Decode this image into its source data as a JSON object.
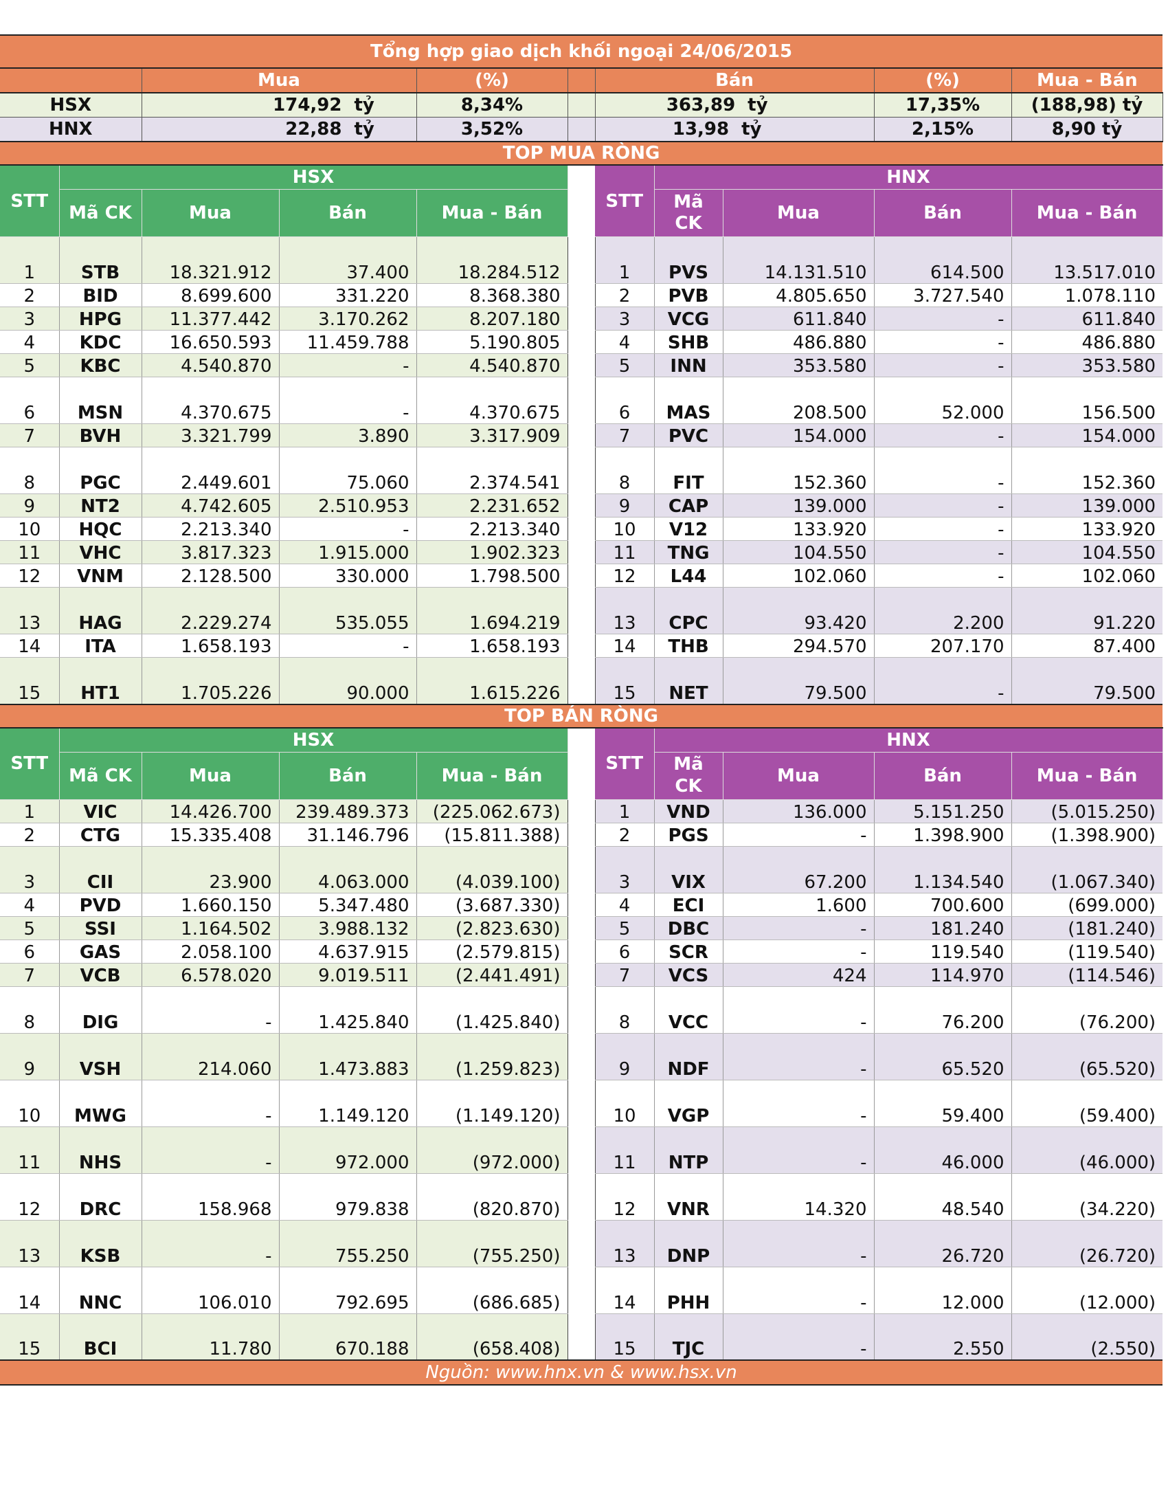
{
  "title": "Tổng hợp giao dịch khối ngoại 24/06/2015",
  "summary": {
    "headers": {
      "mua": "Mua",
      "pct1": "(%)",
      "ban": "Bán",
      "pct2": "(%)",
      "net": "Mua - Bán"
    },
    "unit": "tỷ",
    "rows": [
      {
        "exchange": "HSX",
        "mua": "174,92",
        "mua_pct": "8,34%",
        "ban": "363,89",
        "ban_pct": "17,35%",
        "net": "(188,98) tỷ"
      },
      {
        "exchange": "HNX",
        "mua": "22,88",
        "mua_pct": "3,52%",
        "ban": "13,98",
        "ban_pct": "2,15%",
        "net": "8,90 tỷ"
      }
    ]
  },
  "top_buy": {
    "title": "TOP MUA RÒNG",
    "hsx_label": "HSX",
    "hnx_label": "HNX",
    "headers": {
      "stt": "STT",
      "code_hsx": "Mã CK",
      "code_hnx": "Mã CK",
      "mua": "Mua",
      "ban": "Bán",
      "net": "Mua - Bán"
    },
    "rows": [
      {
        "stt": "1",
        "h_code": "STB",
        "h_mua": "18.321.912",
        "h_ban": "37.400",
        "h_net": "18.284.512",
        "n_code": "PVS",
        "n_mua": "14.131.510",
        "n_ban": "614.500",
        "n_net": "13.517.010"
      },
      {
        "stt": "2",
        "h_code": "BID",
        "h_mua": "8.699.600",
        "h_ban": "331.220",
        "h_net": "8.368.380",
        "n_code": "PVB",
        "n_mua": "4.805.650",
        "n_ban": "3.727.540",
        "n_net": "1.078.110"
      },
      {
        "stt": "3",
        "h_code": "HPG",
        "h_mua": "11.377.442",
        "h_ban": "3.170.262",
        "h_net": "8.207.180",
        "n_code": "VCG",
        "n_mua": "611.840",
        "n_ban": "-",
        "n_net": "611.840"
      },
      {
        "stt": "4",
        "h_code": "KDC",
        "h_mua": "16.650.593",
        "h_ban": "11.459.788",
        "h_net": "5.190.805",
        "n_code": "SHB",
        "n_mua": "486.880",
        "n_ban": "-",
        "n_net": "486.880"
      },
      {
        "stt": "5",
        "h_code": "KBC",
        "h_mua": "4.540.870",
        "h_ban": "-",
        "h_net": "4.540.870",
        "n_code": "INN",
        "n_mua": "353.580",
        "n_ban": "-",
        "n_net": "353.580"
      },
      {
        "stt": "6",
        "h_code": "MSN",
        "h_mua": "4.370.675",
        "h_ban": "-",
        "h_net": "4.370.675",
        "n_code": "MAS",
        "n_mua": "208.500",
        "n_ban": "52.000",
        "n_net": "156.500"
      },
      {
        "stt": "7",
        "h_code": "BVH",
        "h_mua": "3.321.799",
        "h_ban": "3.890",
        "h_net": "3.317.909",
        "n_code": "PVC",
        "n_mua": "154.000",
        "n_ban": "-",
        "n_net": "154.000"
      },
      {
        "stt": "8",
        "h_code": "PGC",
        "h_mua": "2.449.601",
        "h_ban": "75.060",
        "h_net": "2.374.541",
        "n_code": "FIT",
        "n_mua": "152.360",
        "n_ban": "-",
        "n_net": "152.360"
      },
      {
        "stt": "9",
        "h_code": "NT2",
        "h_mua": "4.742.605",
        "h_ban": "2.510.953",
        "h_net": "2.231.652",
        "n_code": "CAP",
        "n_mua": "139.000",
        "n_ban": "-",
        "n_net": "139.000"
      },
      {
        "stt": "10",
        "h_code": "HQC",
        "h_mua": "2.213.340",
        "h_ban": "-",
        "h_net": "2.213.340",
        "n_code": "V12",
        "n_mua": "133.920",
        "n_ban": "-",
        "n_net": "133.920"
      },
      {
        "stt": "11",
        "h_code": "VHC",
        "h_mua": "3.817.323",
        "h_ban": "1.915.000",
        "h_net": "1.902.323",
        "n_code": "TNG",
        "n_mua": "104.550",
        "n_ban": "-",
        "n_net": "104.550"
      },
      {
        "stt": "12",
        "h_code": "VNM",
        "h_mua": "2.128.500",
        "h_ban": "330.000",
        "h_net": "1.798.500",
        "n_code": "L44",
        "n_mua": "102.060",
        "n_ban": "-",
        "n_net": "102.060"
      },
      {
        "stt": "13",
        "h_code": "HAG",
        "h_mua": "2.229.274",
        "h_ban": "535.055",
        "h_net": "1.694.219",
        "n_code": "CPC",
        "n_mua": "93.420",
        "n_ban": "2.200",
        "n_net": "91.220"
      },
      {
        "stt": "14",
        "h_code": "ITA",
        "h_mua": "1.658.193",
        "h_ban": "-",
        "h_net": "1.658.193",
        "n_code": "THB",
        "n_mua": "294.570",
        "n_ban": "207.170",
        "n_net": "87.400"
      },
      {
        "stt": "15",
        "h_code": "HT1",
        "h_mua": "1.705.226",
        "h_ban": "90.000",
        "h_net": "1.615.226",
        "n_code": "NET",
        "n_mua": "79.500",
        "n_ban": "-",
        "n_net": "79.500"
      }
    ]
  },
  "top_sell": {
    "title": "TOP BÁN RÒNG",
    "hsx_label": "HSX",
    "hnx_label": "HNX",
    "headers": {
      "stt": "STT",
      "code_hsx": "Mã CK",
      "code_hnx": "Mã CK",
      "mua": "Mua",
      "ban": "Bán",
      "net": "Mua - Bán"
    },
    "rows": [
      {
        "stt": "1",
        "h_code": "VIC",
        "h_mua": "14.426.700",
        "h_ban": "239.489.373",
        "h_net": "(225.062.673)",
        "n_code": "VND",
        "n_mua": "136.000",
        "n_ban": "5.151.250",
        "n_net": "(5.015.250)"
      },
      {
        "stt": "2",
        "h_code": "CTG",
        "h_mua": "15.335.408",
        "h_ban": "31.146.796",
        "h_net": "(15.811.388)",
        "n_code": "PGS",
        "n_mua": "-",
        "n_ban": "1.398.900",
        "n_net": "(1.398.900)"
      },
      {
        "stt": "3",
        "h_code": "CII",
        "h_mua": "23.900",
        "h_ban": "4.063.000",
        "h_net": "(4.039.100)",
        "n_code": "VIX",
        "n_mua": "67.200",
        "n_ban": "1.134.540",
        "n_net": "(1.067.340)"
      },
      {
        "stt": "4",
        "h_code": "PVD",
        "h_mua": "1.660.150",
        "h_ban": "5.347.480",
        "h_net": "(3.687.330)",
        "n_code": "ECI",
        "n_mua": "1.600",
        "n_ban": "700.600",
        "n_net": "(699.000)"
      },
      {
        "stt": "5",
        "h_code": "SSI",
        "h_mua": "1.164.502",
        "h_ban": "3.988.132",
        "h_net": "(2.823.630)",
        "n_code": "DBC",
        "n_mua": "-",
        "n_ban": "181.240",
        "n_net": "(181.240)"
      },
      {
        "stt": "6",
        "h_code": "GAS",
        "h_mua": "2.058.100",
        "h_ban": "4.637.915",
        "h_net": "(2.579.815)",
        "n_code": "SCR",
        "n_mua": "-",
        "n_ban": "119.540",
        "n_net": "(119.540)"
      },
      {
        "stt": "7",
        "h_code": "VCB",
        "h_mua": "6.578.020",
        "h_ban": "9.019.511",
        "h_net": "(2.441.491)",
        "n_code": "VCS",
        "n_mua": "424",
        "n_ban": "114.970",
        "n_net": "(114.546)"
      },
      {
        "stt": "8",
        "h_code": "DIG",
        "h_mua": "-",
        "h_ban": "1.425.840",
        "h_net": "(1.425.840)",
        "n_code": "VCC",
        "n_mua": "-",
        "n_ban": "76.200",
        "n_net": "(76.200)"
      },
      {
        "stt": "9",
        "h_code": "VSH",
        "h_mua": "214.060",
        "h_ban": "1.473.883",
        "h_net": "(1.259.823)",
        "n_code": "NDF",
        "n_mua": "-",
        "n_ban": "65.520",
        "n_net": "(65.520)"
      },
      {
        "stt": "10",
        "h_code": "MWG",
        "h_mua": "-",
        "h_ban": "1.149.120",
        "h_net": "(1.149.120)",
        "n_code": "VGP",
        "n_mua": "-",
        "n_ban": "59.400",
        "n_net": "(59.400)"
      },
      {
        "stt": "11",
        "h_code": "NHS",
        "h_mua": "-",
        "h_ban": "972.000",
        "h_net": "(972.000)",
        "n_code": "NTP",
        "n_mua": "-",
        "n_ban": "46.000",
        "n_net": "(46.000)"
      },
      {
        "stt": "12",
        "h_code": "DRC",
        "h_mua": "158.968",
        "h_ban": "979.838",
        "h_net": "(820.870)",
        "n_code": "VNR",
        "n_mua": "14.320",
        "n_ban": "48.540",
        "n_net": "(34.220)"
      },
      {
        "stt": "13",
        "h_code": "KSB",
        "h_mua": "-",
        "h_ban": "755.250",
        "h_net": "(755.250)",
        "n_code": "DNP",
        "n_mua": "-",
        "n_ban": "26.720",
        "n_net": "(26.720)"
      },
      {
        "stt": "14",
        "h_code": "NNC",
        "h_mua": "106.010",
        "h_ban": "792.695",
        "h_net": "(686.685)",
        "n_code": "PHH",
        "n_mua": "-",
        "n_ban": "12.000",
        "n_net": "(12.000)"
      },
      {
        "stt": "15",
        "h_code": "BCI",
        "h_mua": "11.780",
        "h_ban": "670.188",
        "h_net": "(658.408)",
        "n_code": "TJC",
        "n_mua": "-",
        "n_ban": "2.550",
        "n_net": "(2.550)"
      }
    ]
  },
  "source": "Nguồn: www.hnx.vn   &   www.hsx.vn"
}
